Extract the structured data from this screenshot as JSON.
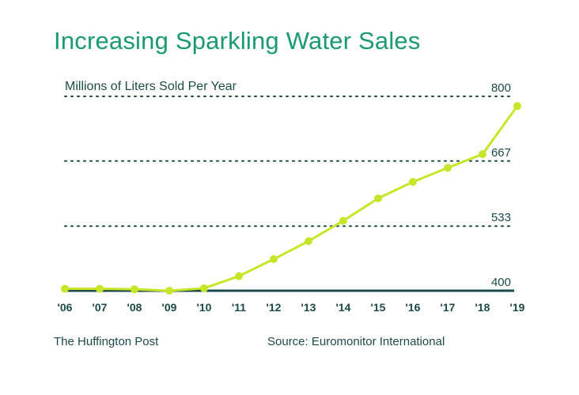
{
  "chart_data": {
    "type": "line",
    "title": "Increasing Sparkling Water Sales",
    "ylabel": "Millions of Liters Sold Per Year",
    "x": [
      "'06",
      "'07",
      "'08",
      "'09",
      "'10",
      "'11",
      "'12",
      "'13",
      "'14",
      "'15",
      "'16",
      "'17",
      "'18",
      "'19"
    ],
    "values": [
      404,
      404,
      403,
      400,
      405,
      430,
      465,
      502,
      544,
      590,
      624,
      653,
      681,
      780
    ],
    "yticks": [
      400,
      533,
      667,
      800
    ],
    "ytick_labels": [
      "400",
      "533",
      "667",
      "800"
    ],
    "ylim": [
      400,
      800
    ],
    "grid": true,
    "line_color": "#c7e62a",
    "grid_color": "#1c4a48"
  },
  "footer": {
    "publisher": "The Huffington Post",
    "source": "Source: Euromonitor International"
  }
}
